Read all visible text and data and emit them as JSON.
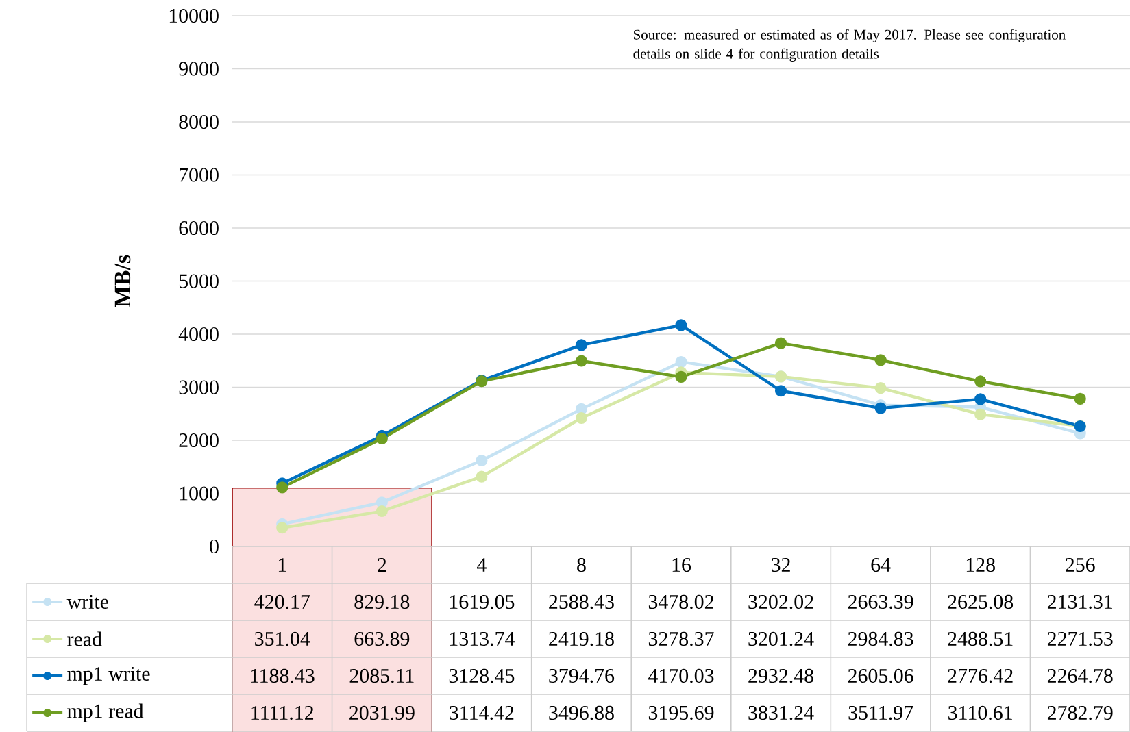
{
  "chart_data": {
    "type": "line",
    "ylabel": "MB/s",
    "categories": [
      "1",
      "2",
      "4",
      "8",
      "16",
      "32",
      "64",
      "128",
      "256"
    ],
    "series": [
      {
        "name": "write",
        "color": "#c5e2f3",
        "values": [
          420.17,
          829.18,
          1619.05,
          2588.43,
          3478.02,
          3202.02,
          2663.39,
          2625.08,
          2131.31
        ]
      },
      {
        "name": "read",
        "color": "#d6e8a6",
        "values": [
          351.04,
          663.89,
          1313.74,
          2419.18,
          3278.37,
          3201.24,
          2984.83,
          2488.51,
          2271.53
        ]
      },
      {
        "name": "mp1 write",
        "color": "#0070c0",
        "values": [
          1188.43,
          2085.11,
          3128.45,
          3794.76,
          4170.03,
          2932.48,
          2605.06,
          2776.42,
          2264.78
        ]
      },
      {
        "name": "mp1 read",
        "color": "#6f9e22",
        "values": [
          1111.12,
          2031.99,
          3114.42,
          3496.88,
          3195.69,
          3831.24,
          3511.97,
          3110.61,
          2782.79
        ]
      }
    ],
    "ylim": [
      0,
      10000
    ],
    "yticks": [
      0,
      1000,
      2000,
      3000,
      4000,
      5000,
      6000,
      7000,
      8000,
      9000,
      10000
    ],
    "grid": "y",
    "legend": "bottom left",
    "marker": "circle",
    "line_style": "solid",
    "data_labels": true,
    "bands": [
      {
        "axis": "x",
        "from": "1",
        "to": "2",
        "color": "#fbe0e0"
      }
    ],
    "annotations": [
      "Source: measured or estimated as of May 2017.  Please see configuration details on slide 4 for configuration details"
    ]
  }
}
